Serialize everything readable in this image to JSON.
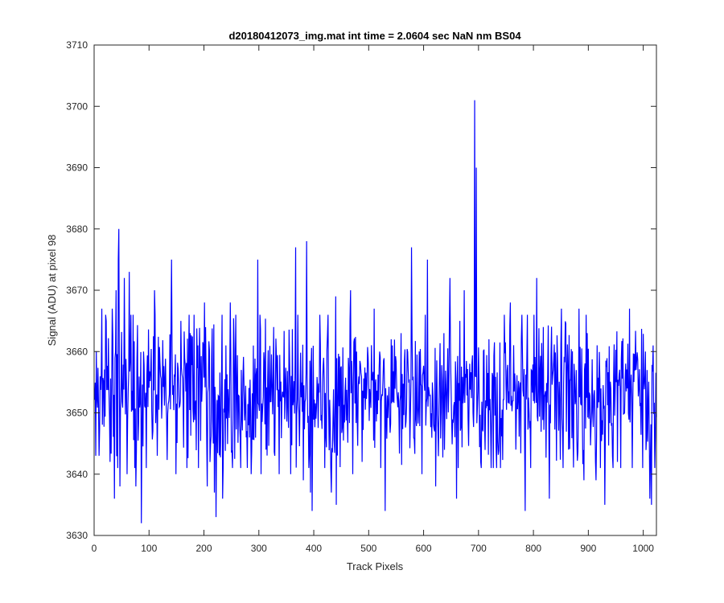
{
  "chart_data": {
    "type": "line",
    "title": "d20180412073_img.mat int time = 2.0604 sec  NaN nm BS04",
    "xlabel": "Track Pixels",
    "ylabel": "Signal (ADU) at pixel 98",
    "xlim": [
      0,
      1024
    ],
    "ylim": [
      3630,
      3710
    ],
    "xticks": [
      "0",
      "100",
      "200",
      "300",
      "400",
      "500",
      "600",
      "700",
      "800",
      "900",
      "1000"
    ],
    "yticks": [
      "3630",
      "3640",
      "3650",
      "3660",
      "3670",
      "3680",
      "3690",
      "3700",
      "3710"
    ],
    "grid": false,
    "legend": "none",
    "series_color": "#0000ff",
    "series": [
      {
        "x_start": 1,
        "x_end": 1024,
        "baseline": 3653,
        "noise_sigma": 6,
        "points": [
          [
            3,
            3643
          ],
          [
            9,
            3643
          ],
          [
            14,
            3667
          ],
          [
            22,
            3665
          ],
          [
            29,
            3642
          ],
          [
            33,
            3667
          ],
          [
            37,
            3636
          ],
          [
            40,
            3670
          ],
          [
            44,
            3675
          ],
          [
            45,
            3680
          ],
          [
            47,
            3638
          ],
          [
            55,
            3672
          ],
          [
            60,
            3640
          ],
          [
            64,
            3673
          ],
          [
            76,
            3638
          ],
          [
            86,
            3632
          ],
          [
            90,
            3660
          ],
          [
            95,
            3641
          ],
          [
            110,
            3670
          ],
          [
            115,
            3643
          ],
          [
            137,
            3653
          ],
          [
            141,
            3675
          ],
          [
            149,
            3640
          ],
          [
            158,
            3665
          ],
          [
            175,
            3663
          ],
          [
            189,
            3661
          ],
          [
            201,
            3668
          ],
          [
            206,
            3638
          ],
          [
            214,
            3659
          ],
          [
            217,
            3645
          ],
          [
            219,
            3637
          ],
          [
            222,
            3633
          ],
          [
            234,
            3636
          ],
          [
            240,
            3661
          ],
          [
            248,
            3668
          ],
          [
            252,
            3641
          ],
          [
            268,
            3657
          ],
          [
            286,
            3640
          ],
          [
            298,
            3675
          ],
          [
            304,
            3640
          ],
          [
            313,
            3644
          ],
          [
            327,
            3664
          ],
          [
            337,
            3640
          ],
          [
            358,
            3640
          ],
          [
            367,
            3677
          ],
          [
            381,
            3639
          ],
          [
            387,
            3678
          ],
          [
            394,
            3637
          ],
          [
            397,
            3634
          ],
          [
            411,
            3666
          ],
          [
            432,
            3637
          ],
          [
            440,
            3669
          ],
          [
            441,
            3635
          ],
          [
            467,
            3670
          ],
          [
            471,
            3640
          ],
          [
            478,
            3660
          ],
          [
            488,
            3642
          ],
          [
            499,
            3659
          ],
          [
            510,
            3667
          ],
          [
            520,
            3660
          ],
          [
            530,
            3634
          ],
          [
            543,
            3661
          ],
          [
            559,
            3663
          ],
          [
            578,
            3677
          ],
          [
            597,
            3640
          ],
          [
            607,
            3675
          ],
          [
            622,
            3638
          ],
          [
            637,
            3663
          ],
          [
            648,
            3672
          ],
          [
            660,
            3636
          ],
          [
            666,
            3665
          ],
          [
            674,
            3670
          ],
          [
            681,
            3649
          ],
          [
            690,
            3650
          ],
          [
            693,
            3701
          ],
          [
            696,
            3690
          ],
          [
            704,
            3642
          ],
          [
            719,
            3662
          ],
          [
            733,
            3641
          ],
          [
            758,
            3668
          ],
          [
            768,
            3644
          ],
          [
            778,
            3662
          ],
          [
            785,
            3634
          ],
          [
            796,
            3657
          ],
          [
            806,
            3672
          ],
          [
            818,
            3664
          ],
          [
            829,
            3636
          ],
          [
            851,
            3667
          ],
          [
            864,
            3644
          ],
          [
            874,
            3658
          ],
          [
            883,
            3667
          ],
          [
            892,
            3639
          ],
          [
            898,
            3663
          ],
          [
            914,
            3639
          ],
          [
            930,
            3635
          ],
          [
            953,
            3642
          ],
          [
            975,
            3667
          ],
          [
            987,
            3657
          ],
          [
            1004,
            3660
          ],
          [
            1012,
            3636
          ],
          [
            1015,
            3635
          ],
          [
            1018,
            3661
          ],
          [
            1022,
            3646
          ]
        ]
      }
    ]
  }
}
